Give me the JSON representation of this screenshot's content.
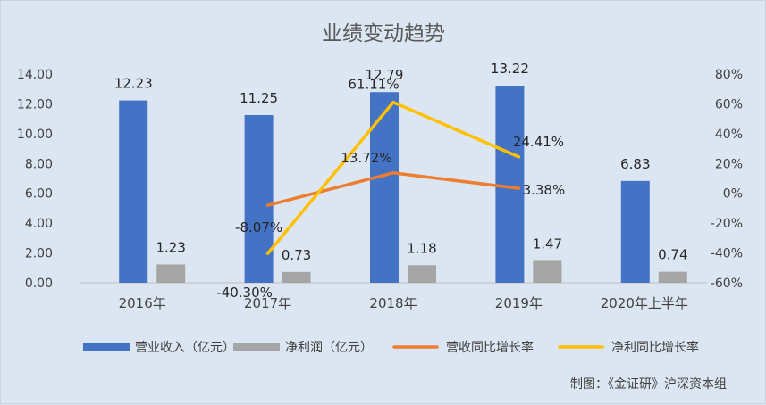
{
  "chart_data": {
    "type": "bar",
    "title": "业绩变动趋势",
    "categories": [
      "2016年",
      "2017年",
      "2018年",
      "2019年",
      "2020年上半年"
    ],
    "y_left": {
      "ticks": [
        "0.00",
        "2.00",
        "4.00",
        "6.00",
        "8.00",
        "10.00",
        "12.00",
        "14.00"
      ],
      "ylim": [
        0,
        14
      ]
    },
    "y_right": {
      "ticks": [
        "-60%",
        "-40%",
        "-20%",
        "0%",
        "20%",
        "40%",
        "60%",
        "80%"
      ],
      "ylim": [
        -60,
        80
      ]
    },
    "series": [
      {
        "name": "营业收入（亿元）",
        "type": "bar",
        "axis": "left",
        "color": "#4472c4",
        "values": [
          12.23,
          11.25,
          12.79,
          13.22,
          6.83
        ],
        "labels": [
          "12.23",
          "11.25",
          "12.79",
          "13.22",
          "6.83"
        ]
      },
      {
        "name": "净利润（亿元）",
        "type": "bar",
        "axis": "left",
        "color": "#a5a5a5",
        "values": [
          1.23,
          0.73,
          1.18,
          1.47,
          0.74
        ],
        "labels": [
          "1.23",
          "0.73",
          "1.18",
          "1.47",
          "0.74"
        ]
      },
      {
        "name": "营收同比增长率",
        "type": "line",
        "axis": "right",
        "color": "#ed7d31",
        "values": [
          null,
          -8.07,
          13.72,
          3.38,
          null
        ],
        "labels": [
          null,
          "-8.07%",
          "13.72%",
          "3.38%",
          null
        ]
      },
      {
        "name": "净利同比增长率",
        "type": "line",
        "axis": "right",
        "color": "#ffc000",
        "values": [
          null,
          -40.3,
          61.11,
          24.41,
          null
        ],
        "labels": [
          null,
          "-40.30%",
          "61.11%",
          "24.41%",
          null
        ]
      }
    ],
    "legend_position": "bottom",
    "grid": false
  },
  "source_note": "制图：《金证研》沪深资本组"
}
